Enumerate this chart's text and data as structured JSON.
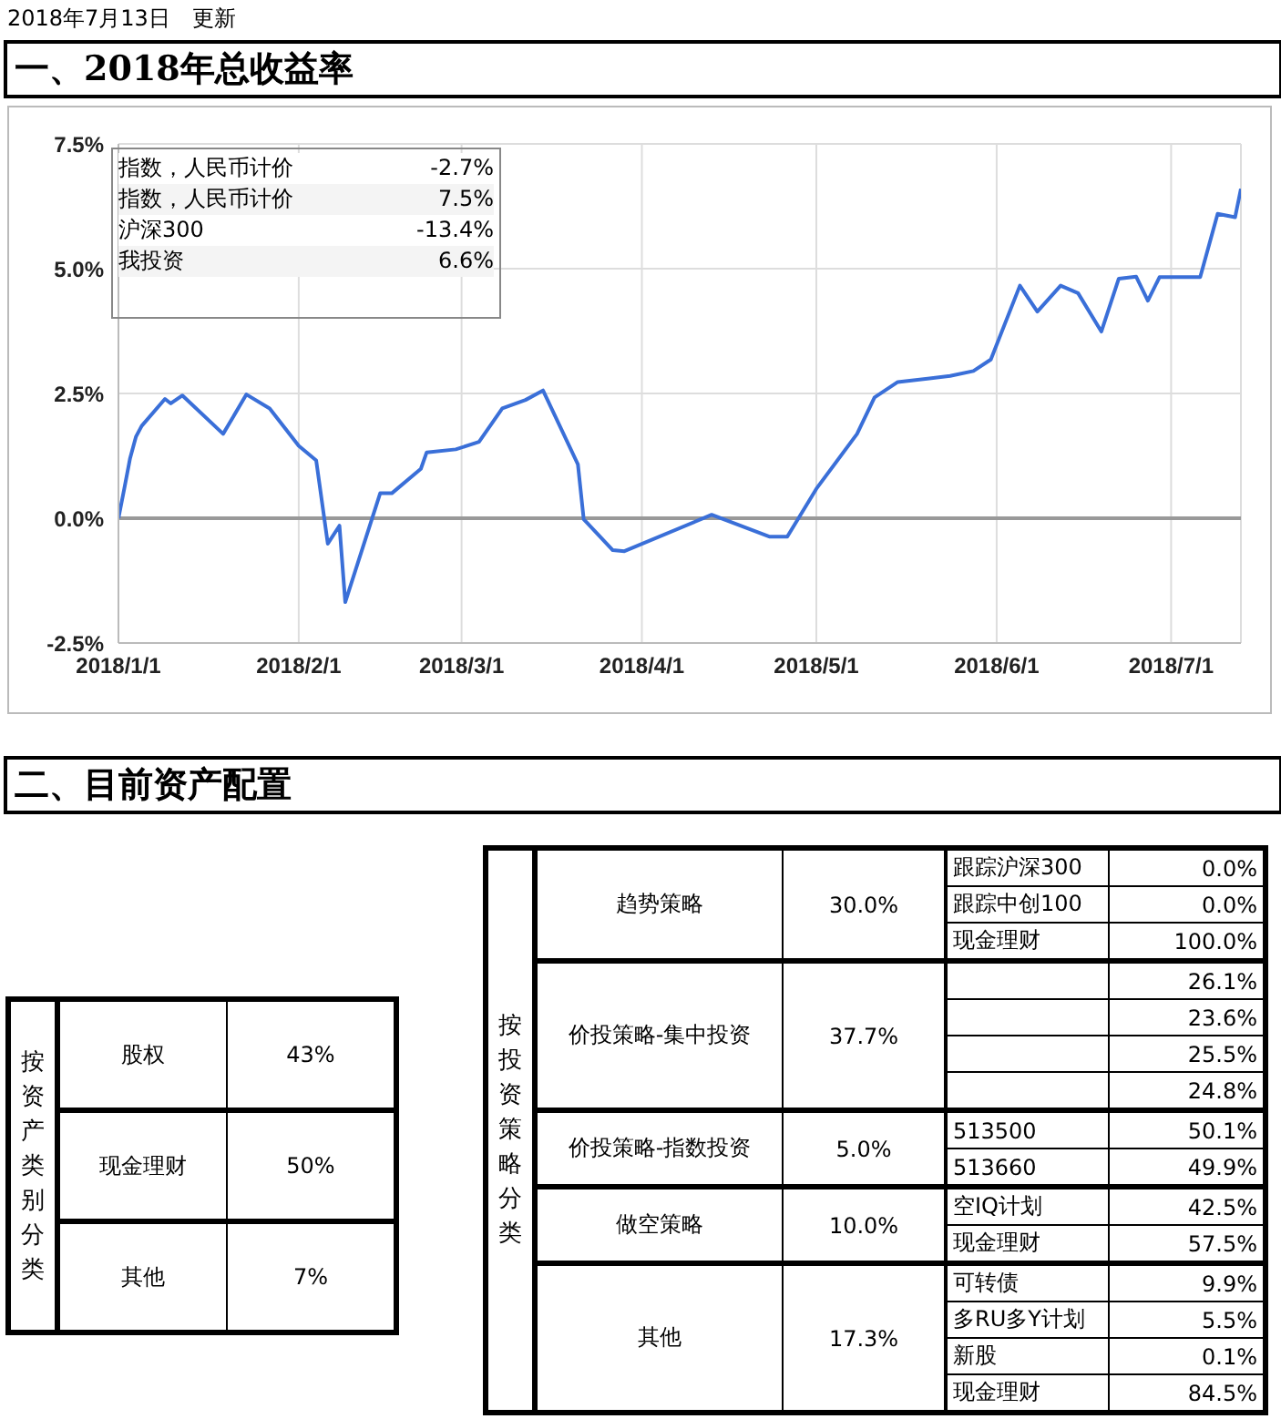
{
  "chart_data": [
    {
      "type": "line",
      "title": "一、2018年总收益率",
      "annotations": [
        "2018年7月13日　更新",
        "指数，人民币计价",
        "-2.7%",
        "指数，人民币计价",
        "7.5%",
        "沪深300",
        "-13.4%",
        "我投资",
        "6.6%"
      ],
      "x": [
        "2018-01-01",
        "2018-01-02",
        "2018-01-03",
        "2018-01-04",
        "2018-01-05",
        "2018-01-09",
        "2018-01-10",
        "2018-01-12",
        "2018-01-19",
        "2018-01-23",
        "2018-01-27",
        "2018-02-01",
        "2018-02-04",
        "2018-02-06",
        "2018-02-08",
        "2018-02-09",
        "2018-02-15",
        "2018-02-17",
        "2018-02-22",
        "2018-02-23",
        "2018-02-28",
        "2018-03-04",
        "2018-03-08",
        "2018-03-12",
        "2018-03-15",
        "2018-03-21",
        "2018-03-22",
        "2018-03-27",
        "2018-03-29",
        "2018-04-13",
        "2018-04-23",
        "2018-04-26",
        "2018-05-01",
        "2018-05-08",
        "2018-05-11",
        "2018-05-15",
        "2018-05-24",
        "2018-05-28",
        "2018-05-31",
        "2018-06-05",
        "2018-06-08",
        "2018-06-12",
        "2018-06-15",
        "2018-06-19",
        "2018-06-22",
        "2018-06-25",
        "2018-06-27",
        "2018-06-29",
        "2018-07-06",
        "2018-07-09",
        "2018-07-12",
        "2018-07-13"
      ],
      "series": [
        {
          "color": "#3a6fd8",
          "values": [
            0,
            0.59,
            1.2,
            1.63,
            1.85,
            2.39,
            2.3,
            2.46,
            1.69,
            2.48,
            2.2,
            1.45,
            1.16,
            -0.51,
            -0.15,
            -1.68,
            0.5,
            0.5,
            0.99,
            1.32,
            1.38,
            1.53,
            2.2,
            2.37,
            2.56,
            1.08,
            -0.02,
            -0.64,
            -0.66,
            0.07,
            -0.37,
            -0.37,
            0.59,
            1.69,
            2.42,
            2.73,
            2.85,
            2.95,
            3.18,
            4.66,
            4.14,
            4.66,
            4.51,
            3.74,
            4.8,
            4.84,
            4.36,
            4.83,
            4.83,
            6.1,
            6.03,
            6.6
          ]
        }
      ],
      "xlim": [
        "2018-01-01",
        "2018-07-13"
      ],
      "xticks": [
        {
          "value": "2018-01-01",
          "label": "2018/1/1"
        },
        {
          "value": "2018-02-01",
          "label": "2018/2/1"
        },
        {
          "value": "2018-03-01",
          "label": "2018/3/1"
        },
        {
          "value": "2018-04-01",
          "label": "2018/4/1"
        },
        {
          "value": "2018-05-01",
          "label": "2018/5/1"
        },
        {
          "value": "2018-06-01",
          "label": "2018/6/1"
        },
        {
          "value": "2018-07-01",
          "label": "2018/7/1"
        }
      ],
      "ylim": [
        -2.5,
        7.5
      ],
      "yticks": [
        {
          "value": -2.5,
          "label": "-2.5%"
        },
        {
          "value": 0,
          "label": "0.0%"
        },
        {
          "value": 2.5,
          "label": "2.5%"
        },
        {
          "value": 5,
          "label": "5.0%"
        },
        {
          "value": 7.5,
          "label": "7.5%"
        }
      ],
      "ref_lines": [
        {
          "axis": "y",
          "value": 0,
          "color": "#999999"
        }
      ],
      "grid": true,
      "marker": "none",
      "line_style": "solid"
    },
    {
      "type": "other",
      "title": "二、目前资产配置",
      "annotations": [
        "按资产类别分类",
        "股权",
        "43%",
        "现金理财",
        "50%",
        "其他",
        "7%",
        "按投资策略分类",
        "趋势策略",
        "30.0%",
        "跟踪沪深300",
        "0.0%",
        "跟踪中创100",
        "0.0%",
        "现金理财",
        "100.0%",
        "价投策略-集中投资",
        "37.7%",
        null,
        "26.1%",
        null,
        "23.6%",
        null,
        "25.5%",
        null,
        "24.8%",
        "价投策略-指数投资",
        "5.0%",
        "513500",
        "50.1%",
        "513660",
        "49.9%",
        "做空策略",
        "10.0%",
        "空IQ计划",
        "42.5%",
        "现金理财",
        "57.5%",
        "其他",
        "17.3%",
        "可转债",
        "9.9%",
        "多RU多Y计划",
        "5.5%",
        "新股",
        "0.1%",
        "现金理财",
        "84.5%"
      ]
    }
  ]
}
